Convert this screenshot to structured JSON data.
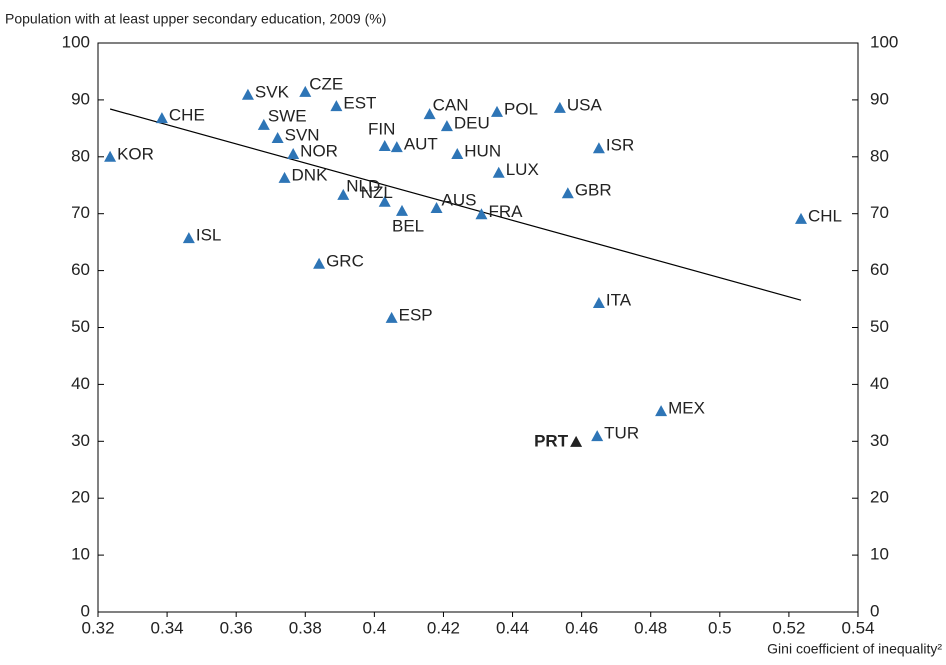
{
  "chart_data": {
    "type": "scatter",
    "y_label": "Population with at least upper secondary education, 2009 (%)",
    "x_label": "Gini coefficient of inequality²",
    "labels": [
      "KOR",
      "CHE",
      "ISL",
      "SVK",
      "SWE",
      "SVN",
      "NOR",
      "DNK",
      "CZE",
      "GRC",
      "EST",
      "NLD",
      "NZL",
      "FIN",
      "AUT",
      "ESP",
      "BEL",
      "AUS",
      "CAN",
      "DEU",
      "HUN",
      "FRA",
      "POL",
      "LUX",
      "USA",
      "GBR",
      "ISR",
      "ITA",
      "CHL",
      "MEX",
      "TUR",
      "PRT"
    ],
    "x": [
      0.3235,
      0.3385,
      0.3463,
      0.3634,
      0.368,
      0.372,
      0.3765,
      0.374,
      0.38,
      0.384,
      0.389,
      0.391,
      0.403,
      0.403,
      0.4065,
      0.405,
      0.408,
      0.418,
      0.416,
      0.421,
      0.424,
      0.431,
      0.4355,
      0.436,
      0.4537,
      0.456,
      0.465,
      0.465,
      0.5235,
      0.483,
      0.4645,
      0.4584
    ],
    "values": [
      80.0,
      86.8,
      65.7,
      90.9,
      85.6,
      83.3,
      80.5,
      76.3,
      91.4,
      61.2,
      88.9,
      73.3,
      72.1,
      81.9,
      81.7,
      51.7,
      70.5,
      71.0,
      87.5,
      85.4,
      80.5,
      69.9,
      87.9,
      77.2,
      88.6,
      73.6,
      81.5,
      54.3,
      69.1,
      35.3,
      30.9,
      29.9
    ],
    "colors": [
      "#2e75b6",
      "#2e75b6",
      "#2e75b6",
      "#2e75b6",
      "#2e75b6",
      "#2e75b6",
      "#2e75b6",
      "#2e75b6",
      "#2e75b6",
      "#2e75b6",
      "#2e75b6",
      "#2e75b6",
      "#2e75b6",
      "#2e75b6",
      "#2e75b6",
      "#2e75b6",
      "#2e75b6",
      "#2e75b6",
      "#2e75b6",
      "#2e75b6",
      "#2e75b6",
      "#2e75b6",
      "#2e75b6",
      "#2e75b6",
      "#2e75b6",
      "#2e75b6",
      "#2e75b6",
      "#2e75b6",
      "#2e75b6",
      "#2e75b6",
      "#2e75b6",
      "#222222"
    ],
    "trendline": {
      "x": [
        0.3235,
        0.5235
      ],
      "y": [
        88.4,
        54.8
      ],
      "color": "#000000"
    },
    "xlim": [
      0.32,
      0.54
    ],
    "xticks": [
      0.32,
      0.34,
      0.36,
      0.38,
      0.4,
      0.42,
      0.44,
      0.46,
      0.48,
      0.5,
      0.52,
      0.54
    ],
    "ylim": [
      0,
      100
    ],
    "yticks": [
      0,
      10,
      20,
      30,
      40,
      50,
      60,
      70,
      80,
      90,
      100
    ],
    "y2lim": [
      0,
      100
    ],
    "y2ticks": [
      0,
      10,
      20,
      30,
      40,
      50,
      60,
      70,
      80,
      90,
      100
    ]
  }
}
